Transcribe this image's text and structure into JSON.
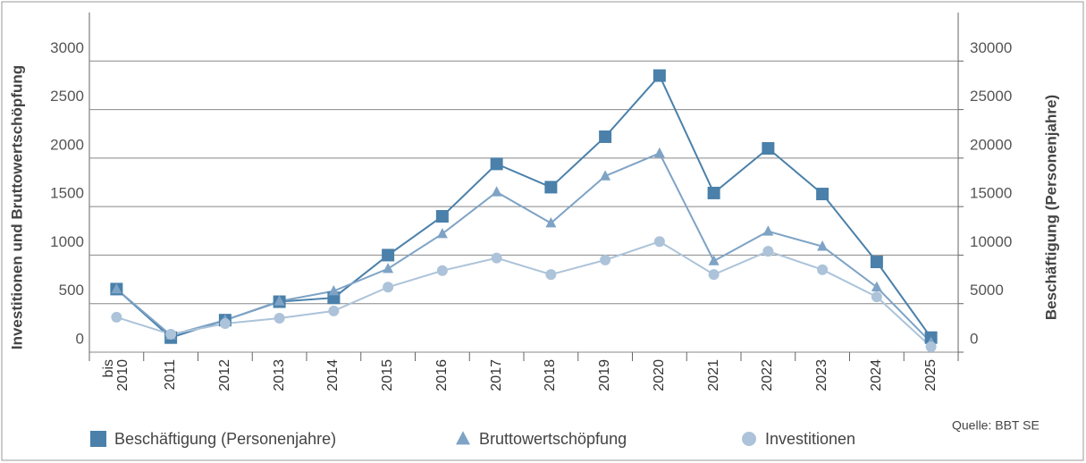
{
  "chart_data": {
    "type": "line",
    "y_label": "Investitionen und Bruttowertschöpfung",
    "y2_label": "Beschäftigung (Personenjahre)",
    "source": "Quelle: BBT SE",
    "categories": [
      "bis\n2010",
      "2011",
      "2012",
      "2013",
      "2014",
      "2015",
      "2016",
      "2017",
      "2018",
      "2019",
      "2020",
      "2021",
      "2022",
      "2023",
      "2024",
      "2025"
    ],
    "series": [
      {
        "name": "Beschäftigung (Personenjahre)",
        "color": "#4a80aa",
        "marker": "square",
        "axis": "y2",
        "values": [
          6500,
          1500,
          3300,
          5200,
          5600,
          10000,
          14000,
          19400,
          17000,
          22200,
          28500,
          16400,
          21000,
          16300,
          9300,
          1500
        ]
      },
      {
        "name": "Bruttowertschöpfung",
        "color": "#7ea3c5",
        "marker": "triangle",
        "values": [
          650,
          175,
          330,
          525,
          630,
          860,
          1220,
          1650,
          1330,
          1815,
          2050,
          940,
          1245,
          1090,
          670,
          100
        ]
      },
      {
        "name": "Investitionen",
        "color": "#acc3d9",
        "marker": "circle",
        "values": [
          360,
          185,
          295,
          350,
          425,
          670,
          840,
          970,
          800,
          950,
          1140,
          800,
          1040,
          850,
          570,
          55
        ]
      }
    ],
    "ylim": [
      0,
      3500
    ],
    "yticks": [
      0,
      500,
      1000,
      1500,
      2000,
      2500,
      3000
    ],
    "y2lim": [
      0,
      35000
    ],
    "y2ticks": [
      0,
      5000,
      10000,
      15000,
      20000,
      25000,
      30000
    ],
    "grid": true
  }
}
